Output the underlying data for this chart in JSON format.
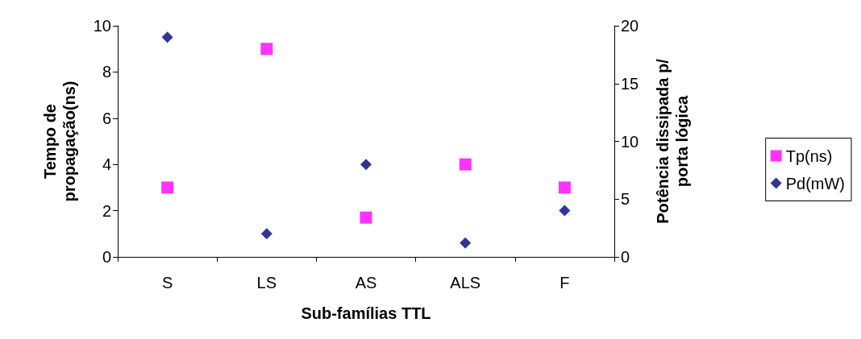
{
  "chart_data": {
    "type": "scatter",
    "xlabel": "Sub-famílias TTL",
    "ylabel": "Tempo de\npropagação(ns)",
    "y2label": "Potência dissipada p/\nporta lógica",
    "categories": [
      "S",
      "LS",
      "AS",
      "ALS",
      "F"
    ],
    "series": [
      {
        "name": "Tp(ns)",
        "color": "#ff00ff",
        "marker": "square",
        "values": [
          3,
          9,
          1.7,
          4,
          3
        ]
      },
      {
        "name": "Pd(mW)",
        "color": "#000080",
        "marker": "diamond",
        "axis": "y2",
        "values": [
          19,
          2,
          8,
          1.2,
          4
        ]
      }
    ],
    "ylim": [
      0,
      10
    ],
    "yticks": [
      0,
      2,
      4,
      6,
      8,
      10
    ],
    "y2lim": [
      0,
      20
    ],
    "y2ticks": [
      0,
      5,
      10,
      15,
      20
    ],
    "grid": false,
    "legend": "right"
  }
}
